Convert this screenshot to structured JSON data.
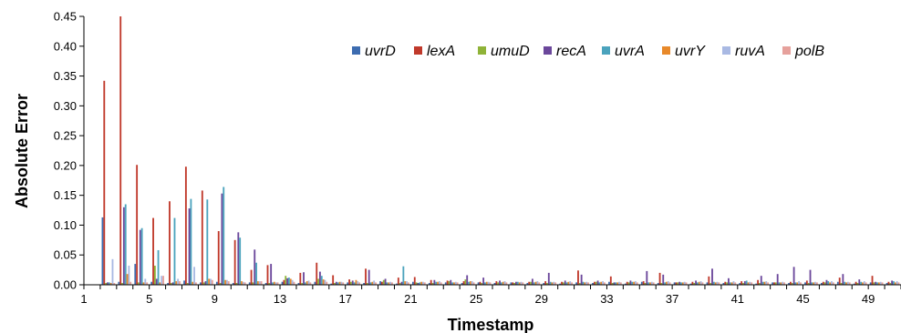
{
  "chart_data": {
    "type": "bar",
    "xlabel": "Timestamp",
    "ylabel": "Absolute Error",
    "ylim": [
      0,
      0.45
    ],
    "yticks": [
      "0.00",
      "0.05",
      "0.10",
      "0.15",
      "0.20",
      "0.25",
      "0.30",
      "0.35",
      "0.40",
      "0.45"
    ],
    "xtick_labels": [
      "1",
      "5",
      "9",
      "13",
      "17",
      "21",
      "25",
      "29",
      "33",
      "37",
      "41",
      "45",
      "49"
    ],
    "grid": false,
    "legend_position": "top-right",
    "categories": [
      1,
      2,
      3,
      4,
      5,
      6,
      7,
      8,
      9,
      10,
      11,
      12,
      13,
      14,
      15,
      16,
      17,
      18,
      19,
      20,
      21,
      22,
      23,
      24,
      25,
      26,
      27,
      28,
      29,
      30,
      31,
      32,
      33,
      34,
      35,
      36,
      37,
      38,
      39,
      40,
      41,
      42,
      43,
      44,
      45,
      46,
      47,
      48,
      49,
      50
    ],
    "series": [
      {
        "name": "uvrD",
        "color": "#3d6cb0",
        "values": [
          0,
          0.113,
          0.005,
          0.035,
          0.005,
          0.003,
          0.007,
          0.004,
          0.005,
          0.003,
          0.004,
          0.003,
          0.005,
          0.003,
          0.005,
          0.002,
          0.004,
          0.003,
          0.006,
          0.002,
          0.005,
          0.003,
          0.004,
          0.003,
          0.004,
          0.003,
          0.004,
          0.003,
          0.003,
          0.002,
          0.004,
          0.003,
          0.005,
          0.002,
          0.005,
          0.003,
          0.004,
          0.002,
          0.004,
          0.003,
          0.003,
          0.002,
          0.004,
          0.003,
          0.004,
          0.003,
          0.005,
          0.002,
          0.004,
          0.003
        ]
      },
      {
        "name": "lexA",
        "color": "#c0392b",
        "values": [
          0,
          0.342,
          0.452,
          0.201,
          0.112,
          0.14,
          0.198,
          0.158,
          0.09,
          0.075,
          0.025,
          0.033,
          0.008,
          0.02,
          0.037,
          0.016,
          0.009,
          0.027,
          0.005,
          0.012,
          0.013,
          0.008,
          0.007,
          0.006,
          0.005,
          0.006,
          0.004,
          0.005,
          0.006,
          0.005,
          0.024,
          0.005,
          0.014,
          0.005,
          0.006,
          0.02,
          0.004,
          0.005,
          0.014,
          0.005,
          0.006,
          0.008,
          0.004,
          0.005,
          0.007,
          0.005,
          0.012,
          0.005,
          0.015,
          0.005
        ]
      },
      {
        "name": "umuD",
        "color": "#8fb338",
        "values": [
          0,
          0.003,
          0.003,
          0.004,
          0.032,
          0.003,
          0.003,
          0.004,
          0.003,
          0.003,
          0.004,
          0.003,
          0.015,
          0.003,
          0.01,
          0.003,
          0.005,
          0.003,
          0.008,
          0.003,
          0.004,
          0.003,
          0.006,
          0.009,
          0.003,
          0.004,
          0.003,
          0.005,
          0.003,
          0.004,
          0.003,
          0.005,
          0.003,
          0.004,
          0.003,
          0.003,
          0.004,
          0.003,
          0.003,
          0.004,
          0.003,
          0.003,
          0.004,
          0.003,
          0.003,
          0.004,
          0.003,
          0.003,
          0.004,
          0.003
        ]
      },
      {
        "name": "recA",
        "color": "#6b479b",
        "values": [
          0,
          0.004,
          0.13,
          0.092,
          0.01,
          0.004,
          0.128,
          0.006,
          0.153,
          0.088,
          0.059,
          0.035,
          0.011,
          0.021,
          0.022,
          0.005,
          0.007,
          0.025,
          0.01,
          0.005,
          0.003,
          0.008,
          0.008,
          0.016,
          0.012,
          0.007,
          0.005,
          0.01,
          0.02,
          0.007,
          0.017,
          0.007,
          0.004,
          0.007,
          0.023,
          0.017,
          0.005,
          0.007,
          0.027,
          0.011,
          0.006,
          0.015,
          0.018,
          0.03,
          0.025,
          0.008,
          0.018,
          0.009,
          0.005,
          0.007
        ]
      },
      {
        "name": "uvrA",
        "color": "#4ba3bd",
        "values": [
          0,
          0.004,
          0.135,
          0.095,
          0.058,
          0.112,
          0.144,
          0.143,
          0.164,
          0.079,
          0.037,
          0.004,
          0.012,
          0.004,
          0.015,
          0.004,
          0.004,
          0.004,
          0.004,
          0.031,
          0.004,
          0.005,
          0.004,
          0.005,
          0.004,
          0.004,
          0.005,
          0.004,
          0.005,
          0.004,
          0.005,
          0.004,
          0.004,
          0.005,
          0.004,
          0.004,
          0.004,
          0.004,
          0.005,
          0.004,
          0.007,
          0.005,
          0.004,
          0.004,
          0.004,
          0.006,
          0.005,
          0.005,
          0.004,
          0.006
        ]
      },
      {
        "name": "uvrY",
        "color": "#e8892a",
        "values": [
          0,
          0.003,
          0.018,
          0.004,
          0.004,
          0.006,
          0.005,
          0.01,
          0.008,
          0.006,
          0.006,
          0.005,
          0.01,
          0.006,
          0.009,
          0.005,
          0.008,
          0.005,
          0.004,
          0.006,
          0.005,
          0.005,
          0.004,
          0.006,
          0.005,
          0.005,
          0.004,
          0.005,
          0.004,
          0.005,
          0.004,
          0.005,
          0.004,
          0.005,
          0.004,
          0.005,
          0.004,
          0.005,
          0.004,
          0.004,
          0.004,
          0.005,
          0.004,
          0.004,
          0.004,
          0.004,
          0.004,
          0.004,
          0.004,
          0.004
        ]
      },
      {
        "name": "ruvA",
        "color": "#a9b9e3",
        "values": [
          0,
          0.043,
          0.032,
          0.01,
          0.015,
          0.01,
          0.03,
          0.01,
          0.008,
          0.005,
          0.006,
          0.004,
          0.008,
          0.007,
          0.008,
          0.005,
          0.006,
          0.007,
          0.005,
          0.006,
          0.005,
          0.006,
          0.005,
          0.006,
          0.005,
          0.006,
          0.005,
          0.006,
          0.005,
          0.006,
          0.005,
          0.006,
          0.005,
          0.006,
          0.005,
          0.006,
          0.005,
          0.006,
          0.005,
          0.006,
          0.005,
          0.006,
          0.005,
          0.006,
          0.005,
          0.006,
          0.005,
          0.006,
          0.005,
          0.006
        ]
      },
      {
        "name": "polB",
        "color": "#e6a19c",
        "values": [
          0,
          0.003,
          0.005,
          0.004,
          0.015,
          0.006,
          0.004,
          0.008,
          0.006,
          0.004,
          0.006,
          0.004,
          0.005,
          0.004,
          0.005,
          0.004,
          0.004,
          0.004,
          0.004,
          0.004,
          0.004,
          0.004,
          0.004,
          0.004,
          0.004,
          0.004,
          0.004,
          0.004,
          0.004,
          0.004,
          0.004,
          0.004,
          0.004,
          0.004,
          0.004,
          0.004,
          0.004,
          0.004,
          0.004,
          0.004,
          0.004,
          0.004,
          0.004,
          0.004,
          0.004,
          0.004,
          0.004,
          0.004,
          0.004,
          0.004
        ]
      }
    ]
  }
}
